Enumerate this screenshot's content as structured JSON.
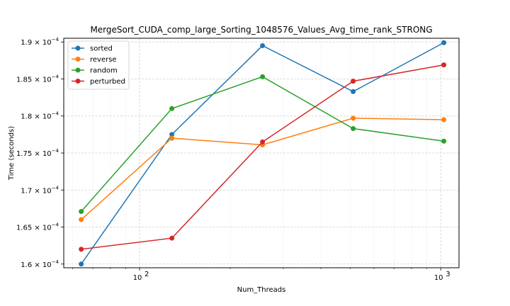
{
  "chart_data": {
    "type": "line",
    "title": "MergeSort_CUDA_comp_large_Sorting_1048576_Values_Avg_time_rank_STRONG",
    "xlabel": "Num_Threads",
    "ylabel": "Time (seconds)",
    "xscale": "log",
    "xlim": [
      56,
      1150
    ],
    "ylim": [
      0.0001595,
      0.0001905
    ],
    "grid": true,
    "legend_position": "top-left",
    "x": [
      64,
      128,
      256,
      512,
      1024
    ],
    "x_ticks": [
      {
        "value": 100,
        "label_base": "10",
        "label_exp": "2"
      },
      {
        "value": 1000,
        "label_base": "10",
        "label_exp": "3"
      }
    ],
    "y_ticks": [
      {
        "value": 0.00016,
        "mantissa": "1.6",
        "exp": "−4"
      },
      {
        "value": 0.000165,
        "mantissa": "1.65",
        "exp": "−4"
      },
      {
        "value": 0.00017,
        "mantissa": "1.7",
        "exp": "−4"
      },
      {
        "value": 0.000175,
        "mantissa": "1.75",
        "exp": "−4"
      },
      {
        "value": 0.00018,
        "mantissa": "1.8",
        "exp": "−4"
      },
      {
        "value": 0.000185,
        "mantissa": "1.85",
        "exp": "−4"
      },
      {
        "value": 0.00019,
        "mantissa": "1.9",
        "exp": "−4"
      }
    ],
    "series": [
      {
        "name": "sorted",
        "color": "#1f77b4",
        "values": [
          0.00016,
          0.0001775,
          0.0001895,
          0.0001833,
          0.0001899
        ]
      },
      {
        "name": "reverse",
        "color": "#ff7f0e",
        "values": [
          0.000166,
          0.000177,
          0.0001761,
          0.0001797,
          0.0001795
        ]
      },
      {
        "name": "random",
        "color": "#2ca02c",
        "values": [
          0.0001671,
          0.000181,
          0.0001853,
          0.0001783,
          0.0001766
        ]
      },
      {
        "name": "perturbed",
        "color": "#d62728",
        "values": [
          0.000162,
          0.0001635,
          0.0001765,
          0.0001847,
          0.0001869
        ]
      }
    ]
  }
}
